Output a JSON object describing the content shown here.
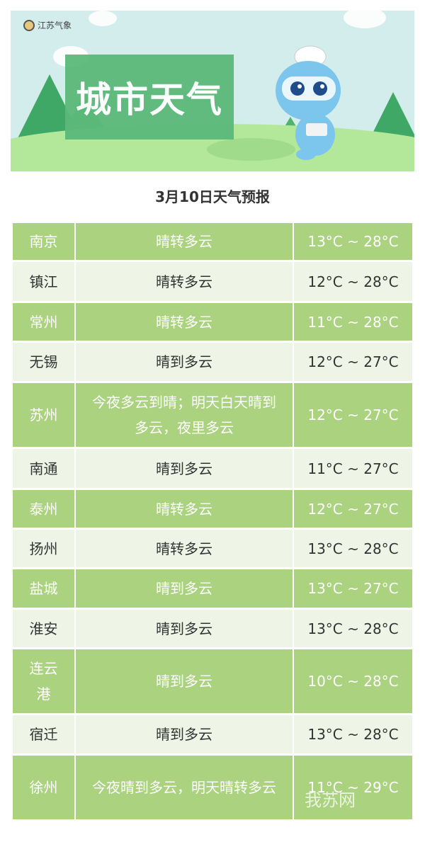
{
  "banner": {
    "brand": "江苏气象",
    "title": "城市天气"
  },
  "heading": "3月10日天气预报",
  "rows": [
    {
      "city": "南京",
      "weather": "晴转多云",
      "temp": "13°C ~ 28°C"
    },
    {
      "city": "镇江",
      "weather": "晴转多云",
      "temp": "12°C ~ 28°C"
    },
    {
      "city": "常州",
      "weather": "晴转多云",
      "temp": "11°C ~ 28°C"
    },
    {
      "city": "无锡",
      "weather": "晴到多云",
      "temp": "12°C ~ 27°C"
    },
    {
      "city": "苏州",
      "weather": "今夜多云到晴；明天白天晴到多云，夜里多云",
      "temp": "12°C ~ 27°C"
    },
    {
      "city": "南通",
      "weather": "晴到多云",
      "temp": "11°C ~ 27°C"
    },
    {
      "city": "泰州",
      "weather": "晴转多云",
      "temp": "12°C ~ 27°C"
    },
    {
      "city": "扬州",
      "weather": "晴转多云",
      "temp": "13°C ~ 28°C"
    },
    {
      "city": "盐城",
      "weather": "晴到多云",
      "temp": "13°C ~ 27°C"
    },
    {
      "city": "淮安",
      "weather": "晴到多云",
      "temp": "13°C ~ 28°C"
    },
    {
      "city": "连云港",
      "weather": "晴到多云",
      "temp": "10°C ~ 28°C"
    },
    {
      "city": "宿迁",
      "weather": "晴到多云",
      "temp": "13°C ~ 28°C"
    },
    {
      "city": "徐州",
      "weather": "今夜晴到多云，明天晴转多云",
      "temp": "11°C ~ 29°C"
    }
  ],
  "watermark": "我苏网",
  "colors": {
    "green_row": "#aad27f",
    "light_row": "#eef5e7",
    "title_box": "#5bb97a"
  }
}
